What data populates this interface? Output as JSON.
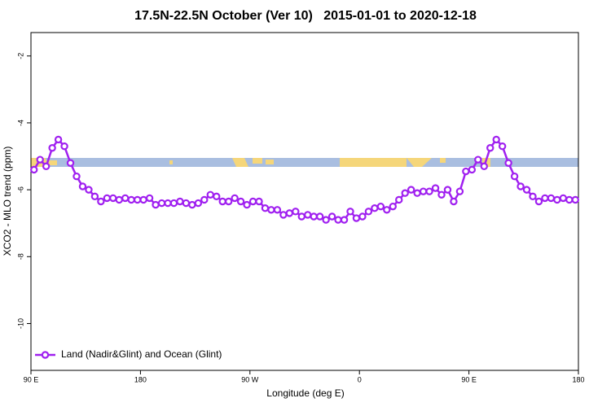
{
  "chart_data": {
    "type": "line",
    "title": "17.5N-22.5N October (Ver 10)   2015-01-01 to 2020-12-18",
    "x_label": "Longitude (deg E)",
    "y_label": "XCO2 - MLO trend (ppm)",
    "xlim": [
      90,
      540
    ],
    "xticks": [
      {
        "value": 90,
        "label": "90 E"
      },
      {
        "value": 180,
        "label": "180"
      },
      {
        "value": 270,
        "label": "90 W"
      },
      {
        "value": 360,
        "label": "0"
      },
      {
        "value": 450,
        "label": "90 E"
      },
      {
        "value": 540,
        "label": "180"
      }
    ],
    "ylim": [
      -11.4,
      -1.3
    ],
    "yticks": [
      -2,
      -4,
      -6,
      -8,
      -10
    ],
    "legend": "bottom-left",
    "x": [
      92.5,
      97.5,
      102.5,
      107.5,
      112.5,
      117.5,
      122.5,
      127.5,
      132.5,
      137.5,
      142.5,
      147.5,
      152.5,
      157.5,
      162.5,
      167.5,
      172.5,
      177.5,
      182.5,
      187.5,
      192.5,
      197.5,
      202.5,
      207.5,
      212.5,
      217.5,
      222.5,
      227.5,
      232.5,
      237.5,
      242.5,
      247.5,
      252.5,
      257.5,
      262.5,
      267.5,
      272.5,
      277.5,
      282.5,
      287.5,
      292.5,
      297.5,
      302.5,
      307.5,
      312.5,
      317.5,
      322.5,
      327.5,
      332.5,
      337.5,
      342.5,
      347.5,
      352.5,
      357.5,
      362.5,
      367.5,
      372.5,
      377.5,
      382.5,
      387.5,
      392.5,
      397.5,
      402.5,
      407.5,
      412.5,
      417.5,
      422.5,
      427.5,
      432.5,
      437.5,
      442.5,
      447.5,
      452.5,
      457.5,
      462.5,
      467.5,
      472.5,
      477.5,
      482.5,
      487.5,
      492.5,
      497.5,
      502.5,
      507.5,
      512.5,
      517.5,
      522.5,
      527.5,
      532.5,
      537.5
    ],
    "series": [
      {
        "name": "Land (Nadir&Glint) and Ocean (Glint)",
        "color": "#a020f0",
        "values": [
          -5.4,
          -5.1,
          -5.3,
          -4.75,
          -4.5,
          -4.7,
          -5.2,
          -5.6,
          -5.9,
          -6.0,
          -6.2,
          -6.35,
          -6.25,
          -6.25,
          -6.3,
          -6.25,
          -6.3,
          -6.3,
          -6.3,
          -6.25,
          -6.45,
          -6.4,
          -6.4,
          -6.4,
          -6.35,
          -6.4,
          -6.45,
          -6.4,
          -6.3,
          -6.15,
          -6.2,
          -6.35,
          -6.35,
          -6.25,
          -6.35,
          -6.45,
          -6.35,
          -6.35,
          -6.55,
          -6.6,
          -6.6,
          -6.75,
          -6.7,
          -6.65,
          -6.8,
          -6.75,
          -6.8,
          -6.8,
          -6.9,
          -6.8,
          -6.9,
          -6.9,
          -6.65,
          -6.85,
          -6.8,
          -6.65,
          -6.55,
          -6.5,
          -6.6,
          -6.5,
          -6.3,
          -6.1,
          -6.0,
          -6.1,
          -6.05,
          -6.05,
          -5.95,
          -6.15,
          -6.0,
          -6.35,
          -6.05,
          -5.45,
          -5.4,
          -5.1,
          -5.3,
          -4.75,
          -4.5,
          -4.7,
          -5.2,
          -5.6,
          -5.9,
          -6.0,
          -6.2,
          -6.35,
          -6.25,
          -6.25,
          -6.3,
          -6.25,
          -6.3,
          -6.3
        ]
      }
    ]
  }
}
